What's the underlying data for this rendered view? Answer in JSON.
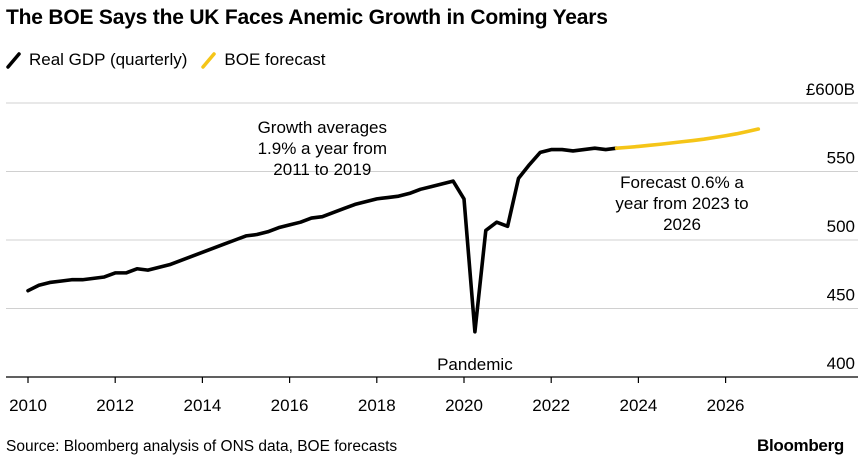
{
  "title": "The BOE Says the UK Faces Anemic Growth in Coming Years",
  "legend": [
    {
      "label": "Real GDP (quarterly)",
      "color": "#000000"
    },
    {
      "label": "BOE forecast",
      "color": "#f5c518"
    }
  ],
  "source": "Source: Bloomberg analysis of ONS data, BOE forecasts",
  "brand": "Bloomberg",
  "chart_data": {
    "type": "line",
    "y_unit_top_label": "£600B",
    "ylim": [
      400,
      600
    ],
    "xlim": [
      2009.75,
      2027.0
    ],
    "x_ticks": [
      2010,
      2012,
      2014,
      2016,
      2018,
      2020,
      2022,
      2024,
      2026
    ],
    "x_tick_labels": [
      "2010",
      "2012",
      "2014",
      "2016",
      "2018",
      "2020",
      "2022",
      "2024",
      "2026"
    ],
    "y_ticks": [
      400,
      450,
      500,
      550,
      600
    ],
    "y_tick_labels": [
      "400",
      "450",
      "500",
      "550",
      "£600B"
    ],
    "grid": true,
    "series": [
      {
        "name": "Real GDP (quarterly)",
        "color": "#000000",
        "x": [
          2010.0,
          2010.25,
          2010.5,
          2010.75,
          2011.0,
          2011.25,
          2011.5,
          2011.75,
          2012.0,
          2012.25,
          2012.5,
          2012.75,
          2013.0,
          2013.25,
          2013.5,
          2013.75,
          2014.0,
          2014.25,
          2014.5,
          2014.75,
          2015.0,
          2015.25,
          2015.5,
          2015.75,
          2016.0,
          2016.25,
          2016.5,
          2016.75,
          2017.0,
          2017.25,
          2017.5,
          2017.75,
          2018.0,
          2018.25,
          2018.5,
          2018.75,
          2019.0,
          2019.25,
          2019.5,
          2019.75,
          2020.0,
          2020.25,
          2020.5,
          2020.75,
          2021.0,
          2021.25,
          2021.5,
          2021.75,
          2022.0,
          2022.25,
          2022.5,
          2022.75,
          2023.0,
          2023.25,
          2023.5
        ],
        "values": [
          463,
          467,
          469,
          470,
          471,
          471,
          472,
          473,
          476,
          476,
          479,
          478,
          480,
          482,
          485,
          488,
          491,
          494,
          497,
          500,
          503,
          504,
          506,
          509,
          511,
          513,
          516,
          517,
          520,
          523,
          526,
          528,
          530,
          531,
          532,
          534,
          537,
          539,
          541,
          543,
          530,
          433,
          507,
          513,
          510,
          545,
          555,
          564,
          566,
          566,
          565,
          566,
          567,
          566,
          567
        ]
      },
      {
        "name": "BOE forecast",
        "color": "#f5c518",
        "x": [
          2023.5,
          2023.75,
          2024.0,
          2024.25,
          2024.5,
          2024.75,
          2025.0,
          2025.25,
          2025.5,
          2025.75,
          2026.0,
          2026.25,
          2026.5,
          2026.75
        ],
        "values": [
          567,
          567.6,
          568.3,
          569.1,
          569.9,
          570.8,
          571.7,
          572.6,
          573.6,
          574.8,
          576.1,
          577.5,
          579.2,
          581.0
        ]
      }
    ],
    "annotations": [
      {
        "lines": [
          "Growth averages",
          "1.9% a year from",
          "2011 to 2019"
        ],
        "x": 2016.75,
        "y": 578
      },
      {
        "lines": [
          "Pandemic"
        ],
        "x": 2020.25,
        "y": 405
      },
      {
        "lines": [
          "Forecast 0.6% a",
          "year from 2023 to",
          "2026"
        ],
        "x": 2025.0,
        "y": 538
      }
    ]
  }
}
